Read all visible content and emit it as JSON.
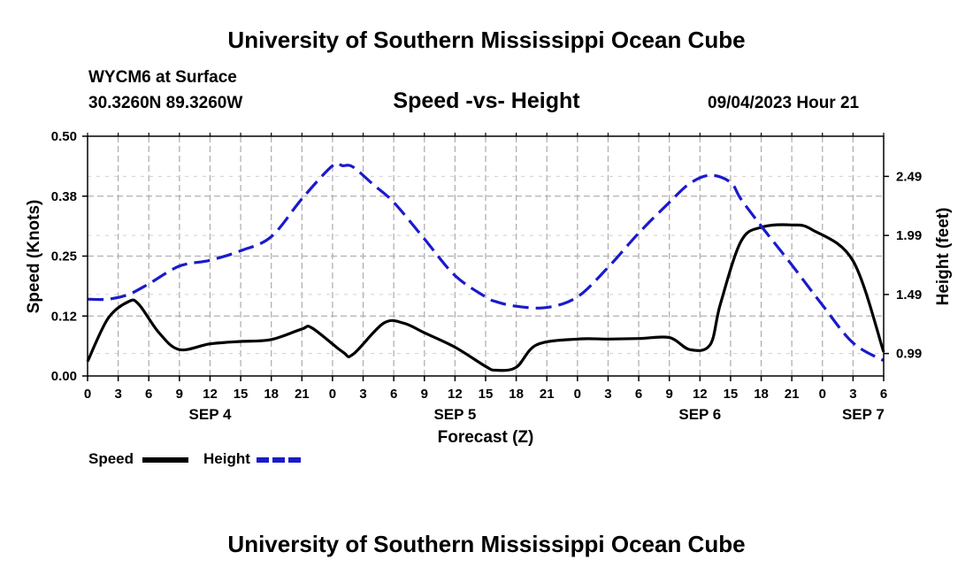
{
  "page": {
    "title_top": "University of Southern Mississippi Ocean Cube",
    "title_bottom": "University of Southern Mississippi Ocean Cube",
    "station": "WYCM6 at Surface",
    "coords": "30.3260N  89.3260W",
    "chart_title": "Speed -vs- Height",
    "datetime": "09/04/2023 Hour 21"
  },
  "legend": {
    "speed_label": "Speed",
    "height_label": "Height"
  },
  "colors": {
    "speed": "#000000",
    "height": "#1a1acc",
    "grid": "#b0b0b0"
  },
  "chart_data": {
    "type": "line",
    "title": "Speed -vs- Height",
    "xlabel": "Forecast (Z)",
    "ylabel": "Speed (Knots)",
    "y2label": "Height (feet)",
    "xlim": [
      0,
      78
    ],
    "ylim": [
      0,
      0.5
    ],
    "y2lim": [
      0.8,
      2.83
    ],
    "grid": true,
    "legend_position": "bottom-left",
    "x_ticks": [
      0,
      3,
      6,
      9,
      12,
      15,
      18,
      21,
      24,
      27,
      30,
      33,
      36,
      39,
      42,
      45,
      48,
      51,
      54,
      57,
      60,
      63,
      66,
      69,
      72,
      75,
      78
    ],
    "x_tick_labels": [
      "0",
      "3",
      "6",
      "9",
      "12",
      "15",
      "18",
      "21",
      "0",
      "3",
      "6",
      "9",
      "12",
      "15",
      "18",
      "21",
      "0",
      "3",
      "6",
      "9",
      "12",
      "15",
      "18",
      "21",
      "0",
      "3",
      "6"
    ],
    "day_labels": [
      {
        "x": 12,
        "label": "SEP 4"
      },
      {
        "x": 36,
        "label": "SEP 5"
      },
      {
        "x": 60,
        "label": "SEP 6"
      },
      {
        "x": 76,
        "label": "SEP 7"
      }
    ],
    "y_ticks": [
      0,
      0.125,
      0.25,
      0.375,
      0.5
    ],
    "y_tick_labels": [
      "0.00",
      "0.12",
      "0.25",
      "0.38",
      "0.50"
    ],
    "y2_ticks": [
      0.99,
      1.49,
      1.99,
      2.49
    ],
    "y2_tick_labels": [
      "0.99",
      "1.49",
      "1.99",
      "2.49"
    ],
    "series": [
      {
        "name": "Speed",
        "axis": "left",
        "style": "solid",
        "x": [
          0,
          2,
          4,
          5,
          7,
          9,
          12,
          15,
          18,
          21,
          22,
          25,
          26,
          29,
          31,
          33,
          36,
          39,
          40,
          42,
          44,
          48,
          51,
          54,
          57,
          59,
          61,
          62,
          64,
          66,
          69,
          71,
          75,
          78
        ],
        "y": [
          0.03,
          0.12,
          0.155,
          0.15,
          0.09,
          0.055,
          0.067,
          0.072,
          0.076,
          0.098,
          0.1,
          0.05,
          0.045,
          0.11,
          0.11,
          0.09,
          0.06,
          0.02,
          0.012,
          0.018,
          0.065,
          0.077,
          0.077,
          0.078,
          0.08,
          0.055,
          0.065,
          0.15,
          0.28,
          0.31,
          0.315,
          0.305,
          0.24,
          0.05
        ]
      },
      {
        "name": "Height",
        "axis": "right",
        "style": "dashed",
        "x": [
          0,
          2,
          4,
          6,
          9,
          12,
          15,
          18,
          21,
          24,
          25,
          26,
          28,
          30,
          33,
          36,
          39,
          40,
          42,
          45,
          48,
          51,
          54,
          57,
          59,
          61,
          63,
          64,
          66,
          69,
          72,
          75,
          78
        ],
        "y": [
          1.45,
          1.45,
          1.49,
          1.58,
          1.73,
          1.78,
          1.86,
          1.98,
          2.3,
          2.58,
          2.58,
          2.57,
          2.42,
          2.27,
          1.96,
          1.65,
          1.47,
          1.43,
          1.39,
          1.38,
          1.47,
          1.72,
          2.01,
          2.27,
          2.43,
          2.5,
          2.44,
          2.3,
          2.07,
          1.74,
          1.4,
          1.08,
          0.93
        ]
      }
    ]
  }
}
